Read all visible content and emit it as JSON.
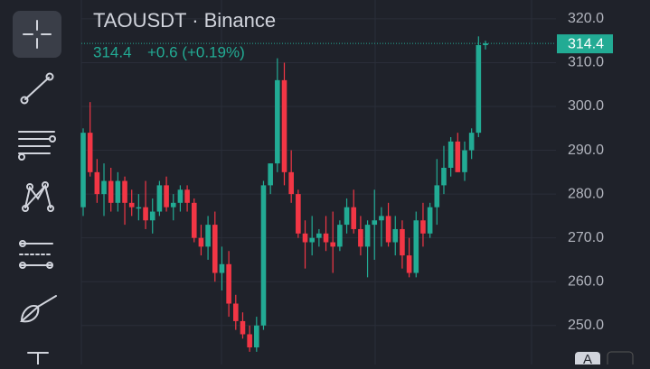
{
  "header": {
    "symbol": "TAOUSDT · Binance",
    "last_price": 314.4,
    "change": "+0.6 (+0.19%)"
  },
  "buttons": [
    "A"
  ],
  "chart_data": {
    "type": "candlestick",
    "up_color": "#22ab94",
    "down_color": "#f23645",
    "ylim": [
      241.1,
      324.3
    ],
    "yticks": [
      {
        "value": 250,
        "label": "250.0"
      },
      {
        "value": 260,
        "label": "260.0"
      },
      {
        "value": 270,
        "label": "270.0"
      },
      {
        "value": 280,
        "label": "280.0"
      },
      {
        "value": 290,
        "label": "290.0"
      },
      {
        "value": 300,
        "label": "300.0"
      },
      {
        "value": 310,
        "label": "310.0"
      },
      {
        "value": 320,
        "label": "320.0"
      }
    ],
    "grid": true,
    "open": [
      277,
      294,
      285,
      280,
      283,
      278,
      283,
      278,
      277,
      277,
      274,
      276,
      282,
      277,
      278,
      281,
      278,
      270,
      268,
      273,
      262,
      264,
      255,
      251,
      248,
      245,
      250,
      282,
      287,
      306,
      285,
      280,
      271,
      269,
      270,
      271,
      269,
      268,
      273,
      277,
      272,
      268,
      273,
      274,
      275,
      269,
      272,
      266,
      262,
      274,
      271,
      277,
      282,
      286,
      292,
      285,
      290,
      294,
      314
    ],
    "high": [
      295,
      301,
      288,
      287,
      286,
      285,
      284,
      281,
      280,
      283,
      279,
      283,
      284,
      280,
      282,
      282,
      279,
      273,
      275,
      276,
      268,
      267,
      257,
      253,
      250,
      252,
      283,
      287,
      311,
      310,
      290,
      281,
      274,
      275,
      272,
      275,
      276,
      274,
      279,
      281,
      275,
      274,
      281,
      277,
      278,
      275,
      274,
      270,
      276,
      278,
      278,
      288,
      291,
      293,
      294,
      292,
      295,
      316,
      315
    ],
    "low": [
      275,
      284,
      278,
      275,
      276,
      276,
      273,
      275,
      274,
      272,
      271,
      275,
      276,
      274,
      276,
      276,
      269,
      266,
      265,
      260,
      258,
      252,
      249,
      247,
      244,
      244,
      249,
      280,
      285,
      282,
      278,
      270,
      263,
      266,
      268,
      267,
      262,
      267,
      271,
      271,
      266,
      261,
      265,
      268,
      268,
      266,
      263,
      261,
      261,
      268,
      270,
      273,
      280,
      284,
      285,
      283,
      288,
      293,
      313
    ],
    "close": [
      294,
      285,
      280,
      283,
      278,
      283,
      278,
      277,
      277,
      274,
      276,
      282,
      277,
      278,
      281,
      278,
      270,
      268,
      273,
      262,
      264,
      255,
      251,
      248,
      245,
      250,
      282,
      287,
      306,
      285,
      280,
      271,
      269,
      270,
      271,
      269,
      268,
      273,
      277,
      272,
      268,
      273,
      274,
      275,
      269,
      272,
      266,
      262,
      274,
      271,
      277,
      282,
      286,
      292,
      285,
      290,
      294,
      314,
      314.4
    ]
  }
}
